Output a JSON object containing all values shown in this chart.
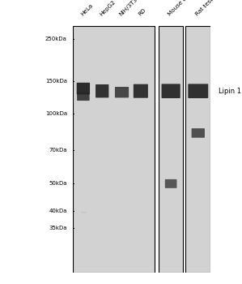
{
  "fig_width": 2.99,
  "fig_height": 3.5,
  "dpi": 100,
  "bg_color": "#ffffff",
  "gel_bg": "#d0d0d0",
  "lane_labels": [
    "HeLa",
    "HepG2",
    "NIH/3T3",
    "RD",
    "Mouse testis",
    "Rat testis"
  ],
  "mw_markers": [
    "250kDa",
    "150kDa",
    "100kDa",
    "70kDa",
    "50kDa",
    "40kDa",
    "35kDa"
  ],
  "annotation": "Lipin 1",
  "panel1_lanes": 4,
  "panel2_lanes": 1,
  "panel3_lanes": 1
}
